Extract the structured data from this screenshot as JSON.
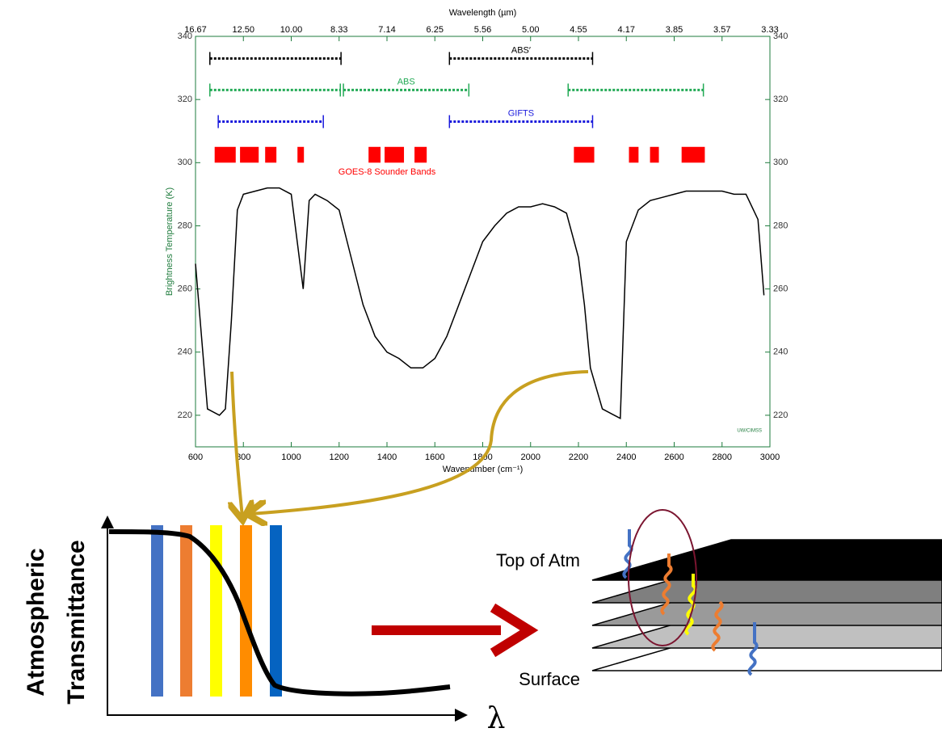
{
  "chart_data": {
    "type": "line",
    "title": "Wavelength (µm)",
    "x_label": "Wavenumber (cm⁻¹)",
    "y_label": "Brightness Temperature (K)",
    "credit": "UW/CIMSS",
    "color": "#000000",
    "x": [
      600,
      625,
      650,
      700,
      725,
      750,
      775,
      800,
      850,
      900,
      950,
      1000,
      1025,
      1050,
      1075,
      1100,
      1150,
      1200,
      1250,
      1300,
      1350,
      1400,
      1450,
      1500,
      1550,
      1600,
      1650,
      1700,
      1750,
      1800,
      1850,
      1900,
      1950,
      2000,
      2050,
      2100,
      2150,
      2200,
      2225,
      2250,
      2300,
      2350,
      2375,
      2400,
      2450,
      2500,
      2550,
      2600,
      2650,
      2700,
      2750,
      2800,
      2850,
      2900,
      2950,
      2975
    ],
    "values": [
      268,
      245,
      222,
      220,
      222,
      250,
      285,
      290,
      291,
      292,
      292,
      290,
      275,
      260,
      288,
      290,
      288,
      285,
      270,
      255,
      245,
      240,
      238,
      235,
      235,
      238,
      245,
      255,
      265,
      275,
      280,
      284,
      286,
      286,
      287,
      286,
      284,
      270,
      255,
      235,
      222,
      220,
      219,
      275,
      285,
      288,
      289,
      290,
      291,
      291,
      291,
      291,
      290,
      290,
      282,
      258
    ],
    "xlim": [
      600,
      3000
    ],
    "ylim": [
      210,
      340
    ],
    "xticks": [
      600,
      800,
      1000,
      1200,
      1400,
      1600,
      1800,
      2000,
      2200,
      2400,
      2600,
      2800,
      3000
    ],
    "yticks": [
      220,
      240,
      260,
      280,
      300,
      320,
      340
    ],
    "top_ticks": [
      {
        "value": 600,
        "label": "16.67"
      },
      {
        "value": 800,
        "label": "12.50"
      },
      {
        "value": 1000,
        "label": "10.00"
      },
      {
        "value": 1200,
        "label": "8.33"
      },
      {
        "value": 1400,
        "label": "7.14"
      },
      {
        "value": 1600,
        "label": "6.25"
      },
      {
        "value": 1800,
        "label": "5.56"
      },
      {
        "value": 2000,
        "label": "5.00"
      },
      {
        "value": 2200,
        "label": "4.55"
      },
      {
        "value": 2400,
        "label": "4.17"
      },
      {
        "value": 2600,
        "label": "3.85"
      },
      {
        "value": 2800,
        "label": "3.57"
      },
      {
        "value": 3000,
        "label": "3.33"
      }
    ],
    "ranges": [
      {
        "label": "ABS′",
        "color": "#000000",
        "y": 333,
        "spans": [
          [
            660,
            1208
          ],
          [
            1661,
            2259
          ]
        ]
      },
      {
        "label": "ABS",
        "color": "#22aa55",
        "y": 323,
        "spans": [
          [
            660,
            1205
          ],
          [
            1218,
            1742
          ],
          [
            2157,
            2722
          ]
        ]
      },
      {
        "label": "GIFTS",
        "color": "#1a1adc",
        "y": 313,
        "spans": [
          [
            695,
            1134
          ],
          [
            1661,
            2259
          ]
        ]
      }
    ],
    "bands_label": "GOES-8 Sounder Bands",
    "band_color": "#ff0000",
    "band_y": [
      300,
      305
    ],
    "bands": [
      [
        680,
        768
      ],
      [
        786,
        864
      ],
      [
        891,
        938
      ],
      [
        1026,
        1053
      ],
      [
        1323,
        1373
      ],
      [
        1390,
        1471
      ],
      [
        1515,
        1566
      ],
      [
        2181,
        2266
      ],
      [
        2411,
        2451
      ],
      [
        2499,
        2536
      ],
      [
        2631,
        2728
      ]
    ]
  },
  "diagram": {
    "y_label": [
      "Atmospheric",
      "Transmittance"
    ],
    "x_label": "λ"
  },
  "layers": {
    "top": "Top of Atm",
    "bottom": "Surface"
  }
}
